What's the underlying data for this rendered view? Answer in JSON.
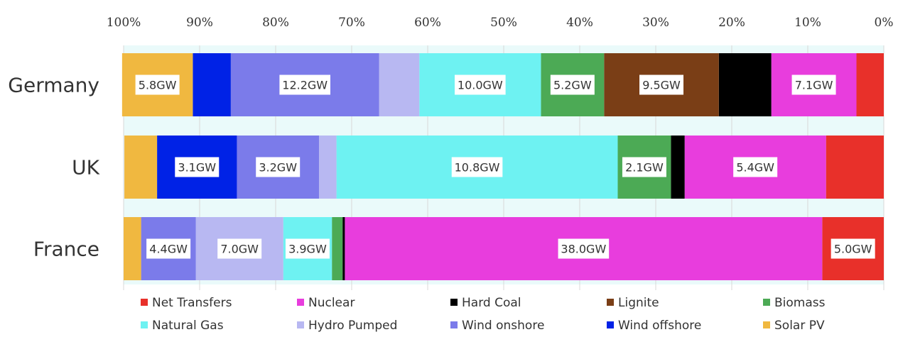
{
  "chart_data": {
    "type": "bar",
    "orientation": "horizontal-stacked",
    "x_axis_reversed": true,
    "xlim": [
      0,
      100
    ],
    "x_unit": "%",
    "x_ticks": [
      "100%",
      "90%",
      "80%",
      "70%",
      "60%",
      "50%",
      "40%",
      "30%",
      "20%",
      "10%",
      "0%"
    ],
    "grid": true,
    "legend_position": "bottom",
    "categories": [
      "Germany",
      "UK",
      "France"
    ],
    "series": [
      {
        "name": "Net Transfers",
        "color": "#e8302a",
        "values": [
          3.6,
          7.6,
          8.1
        ],
        "labels": [
          "",
          "",
          "5.0GW"
        ]
      },
      {
        "name": "Nuclear",
        "color": "#e83ddd",
        "values": [
          11.2,
          18.6,
          62.8
        ],
        "labels": [
          "7.1GW",
          "5.4GW",
          "38.0GW"
        ]
      },
      {
        "name": "Hard Coal",
        "color": "#000000",
        "values": [
          6.9,
          1.8,
          0.3
        ],
        "labels": [
          "",
          "",
          ""
        ]
      },
      {
        "name": "Lignite",
        "color": "#7a3e16",
        "values": [
          15.1,
          0,
          0
        ],
        "labels": [
          "9.5GW",
          "",
          ""
        ]
      },
      {
        "name": "Biomass",
        "color": "#4caa55",
        "values": [
          8.3,
          7.0,
          1.4
        ],
        "labels": [
          "5.2GW",
          "2.1GW",
          ""
        ]
      },
      {
        "name": "Natural Gas",
        "color": "#6ef2f2",
        "values": [
          16.0,
          37.0,
          6.4
        ],
        "labels": [
          "10.0GW",
          "10.8GW",
          "3.9GW"
        ]
      },
      {
        "name": "Hydro Pumped",
        "color": "#b8b8f2",
        "values": [
          5.3,
          2.3,
          11.5
        ],
        "labels": [
          "",
          "",
          "7.0GW"
        ]
      },
      {
        "name": "Wind onshore",
        "color": "#7b7bea",
        "values": [
          19.5,
          10.8,
          7.2
        ],
        "labels": [
          "12.2GW",
          "3.2GW",
          "4.4GW"
        ]
      },
      {
        "name": "Wind offshore",
        "color": "#0022e6",
        "values": [
          5.0,
          10.5,
          0
        ],
        "labels": [
          "",
          "3.1GW",
          ""
        ]
      },
      {
        "name": "Solar PV",
        "color": "#f0b840",
        "values": [
          9.3,
          4.3,
          2.3
        ],
        "labels": [
          "5.8GW",
          "",
          ""
        ]
      }
    ]
  }
}
